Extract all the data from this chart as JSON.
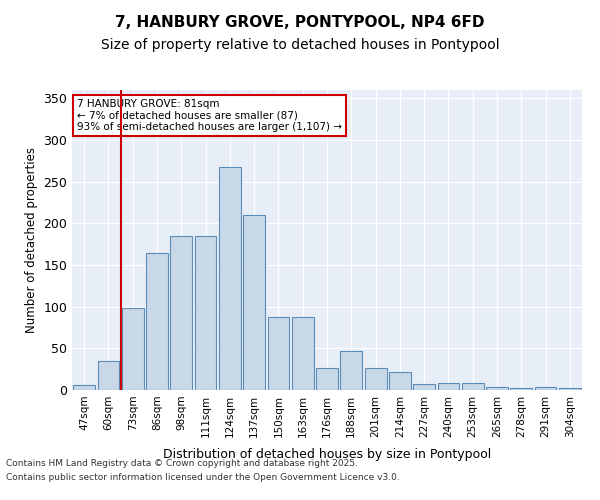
{
  "title_line1": "7, HANBURY GROVE, PONTYPOOL, NP4 6FD",
  "title_line2": "Size of property relative to detached houses in Pontypool",
  "xlabel": "Distribution of detached houses by size in Pontypool",
  "ylabel": "Number of detached properties",
  "categories": [
    "47sqm",
    "60sqm",
    "73sqm",
    "86sqm",
    "98sqm",
    "111sqm",
    "124sqm",
    "137sqm",
    "150sqm",
    "163sqm",
    "176sqm",
    "188sqm",
    "201sqm",
    "214sqm",
    "227sqm",
    "240sqm",
    "253sqm",
    "265sqm",
    "278sqm",
    "291sqm",
    "304sqm"
  ],
  "values": [
    6,
    35,
    98,
    165,
    185,
    185,
    268,
    210,
    88,
    88,
    27,
    47,
    27,
    22,
    7,
    9,
    9,
    4,
    2,
    4,
    2
  ],
  "bar_color": "#c8d8e8",
  "bar_edge_color": "#5b8db8",
  "vline_x": 2,
  "vline_color": "#cc0000",
  "annotation_text": "7 HANBURY GROVE: 81sqm\n← 7% of detached houses are smaller (87)\n93% of semi-detached houses are larger (1,107) →",
  "annotation_box_color": "#ffffff",
  "annotation_box_edge_color": "#cc0000",
  "ylim": [
    0,
    360
  ],
  "yticks": [
    0,
    50,
    100,
    150,
    200,
    250,
    300,
    350
  ],
  "background_color": "#e8eef8",
  "grid_color": "#ffffff",
  "footer_line1": "Contains HM Land Registry data © Crown copyright and database right 2025.",
  "footer_line2": "Contains public sector information licensed under the Open Government Licence v3.0."
}
